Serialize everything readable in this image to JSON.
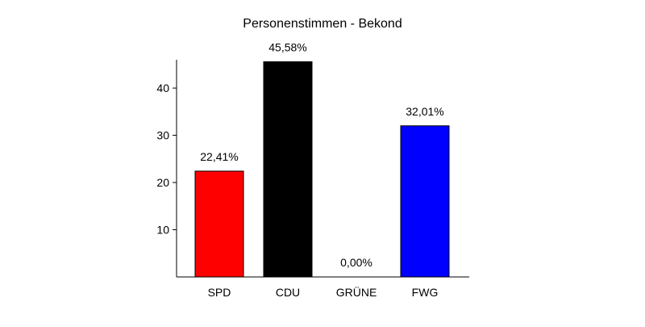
{
  "chart_data": {
    "type": "bar",
    "title": "Personenstimmen - Bekond",
    "xlabel": "",
    "ylabel": "",
    "categories": [
      "SPD",
      "CDU",
      "GRÜNE",
      "FWG"
    ],
    "values": [
      22.41,
      45.58,
      0.0,
      32.01
    ],
    "data_labels": [
      "22,41%",
      "45,58%",
      "0,00%",
      "32,01%"
    ],
    "colors": [
      "#ff0000",
      "#000000",
      "#00a000",
      "#0000ff"
    ],
    "yticks": [
      10,
      20,
      30,
      40
    ],
    "ytick_labels": [
      "10",
      "20",
      "30",
      "40"
    ],
    "ylim": [
      0,
      46
    ],
    "grid": false,
    "legend": "none"
  }
}
